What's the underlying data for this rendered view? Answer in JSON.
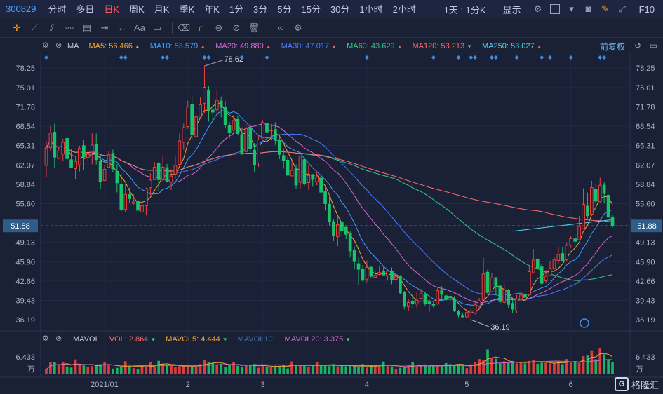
{
  "header": {
    "code": "300829",
    "periods": [
      "分时",
      "多日",
      "日K",
      "周K",
      "月K",
      "季K",
      "年K",
      "1分",
      "3分",
      "5分",
      "15分",
      "30分",
      "1小时",
      "2小时"
    ],
    "active_period": "日K",
    "interval_select": "1天 : 1分K",
    "display_select": "显示",
    "f10": "F10"
  },
  "drawbar": {
    "text_tool": "Aa"
  },
  "ma_legend": {
    "name": "MA",
    "items": [
      {
        "label": "MA5: 56.466",
        "color": "#f0a53a",
        "trend": "up"
      },
      {
        "label": "MA10: 53.579",
        "color": "#3aa0ff",
        "trend": "up"
      },
      {
        "label": "MA20: 49.880",
        "color": "#d86ad0",
        "trend": "up"
      },
      {
        "label": "MA30: 47.017",
        "color": "#4a7cff",
        "trend": "up"
      },
      {
        "label": "MA60: 43.629",
        "color": "#37c88a",
        "trend": "up"
      },
      {
        "label": "MA120: 53.213",
        "color": "#ff6a6a",
        "trend": "down"
      },
      {
        "label": "MA250: 53.027",
        "color": "#4fd6f0",
        "trend": "up"
      }
    ],
    "adjust_label": "前复权"
  },
  "vol_legend": {
    "name": "MAVOL",
    "items": [
      {
        "label": "VOL: 2.864",
        "color": "#ff6a6a",
        "trend": "down"
      },
      {
        "label": "MAVOL5: 4.444",
        "color": "#f0a53a",
        "trend": "down"
      },
      {
        "label": "MAVOL10:",
        "color": "#3c70b0",
        "trend": "none"
      },
      {
        "label": "MAVOL20: 3.375",
        "color": "#d86ad0",
        "trend": "down"
      }
    ]
  },
  "price_axis": {
    "ticks": [
      "78.25",
      "75.01",
      "71.78",
      "68.54",
      "65.31",
      "62.07",
      "58.84",
      "55.60",
      "51.88",
      "49.13",
      "45.90",
      "42.66",
      "39.43",
      "36.19"
    ],
    "current": "51.88",
    "max_label": "78.62",
    "min_label": "36.19"
  },
  "vol_axis": {
    "max": "6.433",
    "unit": "万"
  },
  "date_labels": [
    "2021/01",
    "2",
    "3",
    "4",
    "5",
    "6"
  ],
  "watermark": "格隆汇",
  "chart_data": {
    "type": "candlestick",
    "y_range": [
      34.8,
      80.5
    ],
    "current_price": 51.88,
    "high_marker": 78.62,
    "low_marker": 36.19,
    "candles": [
      [
        62.01,
        64.93,
        60.0,
        66.11,
        1.2
      ],
      [
        64.96,
        67.42,
        64.37,
        68.61,
        2.88
      ],
      [
        67.54,
        63.37,
        61.64,
        68.96,
        2.9
      ],
      [
        63.18,
        64.39,
        63.03,
        65.09,
        2.35
      ],
      [
        63.9,
        65.85,
        62.73,
        66.44,
        2.87
      ],
      [
        66.49,
        63.13,
        62.61,
        66.69,
        1.9
      ],
      [
        62.94,
        61.61,
        61.5,
        64.74,
        1.63
      ],
      [
        61.47,
        62.66,
        59.71,
        63.63,
        3.61
      ],
      [
        62.09,
        64.84,
        60.97,
        65.29,
        2.31
      ],
      [
        65.29,
        63.4,
        61.19,
        66.28,
        2.15
      ],
      [
        63.31,
        63.86,
        62.75,
        64.53,
        1.85
      ],
      [
        64.23,
        65.38,
        62.19,
        67.42,
        1.98
      ],
      [
        65.48,
        62.96,
        62.16,
        67.33,
        2.28
      ],
      [
        62.75,
        59.23,
        58.1,
        63.69,
        2.42
      ],
      [
        59.46,
        61.34,
        59.38,
        62.1,
        3.06
      ],
      [
        61.66,
        63.78,
        61.63,
        64.34,
        2.17
      ],
      [
        63.99,
        61.43,
        60.91,
        64.63,
        1.39
      ],
      [
        61.0,
        59.08,
        57.48,
        62.22,
        1.56
      ],
      [
        58.81,
        54.64,
        54.23,
        60.61,
        1.81
      ],
      [
        54.63,
        57.14,
        54.2,
        58.98,
        3.16
      ],
      [
        57.12,
        56.45,
        55.73,
        58.26,
        2.05
      ],
      [
        55.64,
        55.91,
        55.45,
        57.15,
        1.5
      ],
      [
        56.06,
        54.5,
        54.4,
        57.77,
        1.31
      ],
      [
        54.2,
        55.25,
        54.05,
        56.77,
        1.94
      ],
      [
        55.24,
        58.1,
        53.65,
        58.29,
        2.02
      ],
      [
        58.26,
        59.52,
        57.01,
        60.68,
        2.93
      ],
      [
        59.62,
        61.68,
        59.53,
        62.56,
        1.81
      ],
      [
        62.31,
        59.62,
        57.63,
        62.54,
        3.26
      ],
      [
        59.59,
        61.69,
        59.27,
        63.5,
        2.54
      ],
      [
        61.61,
        59.22,
        59.2,
        62.22,
        2.25
      ],
      [
        59.18,
        60.21,
        57.87,
        61.35,
        2.05
      ],
      [
        60.56,
        62.02,
        59.74,
        63.45,
        1.66
      ],
      [
        62.15,
        66.09,
        61.98,
        67.34,
        1.98
      ],
      [
        65.87,
        68.3,
        64.6,
        68.98,
        2.11
      ],
      [
        68.49,
        71.74,
        68.12,
        72.79,
        2.31
      ],
      [
        72.22,
        67.14,
        66.3,
        73.78,
        1.72
      ],
      [
        66.79,
        70.1,
        66.16,
        70.46,
        1.86
      ],
      [
        70.06,
        72.14,
        69.96,
        73.46,
        2.48
      ],
      [
        72.37,
        75.05,
        70.79,
        78.62,
        3.43
      ],
      [
        74.55,
        71.16,
        69.3,
        75.31,
        3.05
      ],
      [
        71.24,
        70.89,
        69.36,
        72.25,
        2.77
      ],
      [
        71.28,
        72.88,
        70.71,
        74.54,
        2.44
      ],
      [
        72.74,
        71.7,
        70.03,
        73.51,
        2.59
      ],
      [
        71.64,
        68.8,
        68.23,
        72.73,
        1.82
      ],
      [
        68.62,
        67.45,
        66.52,
        69.25,
        2.26
      ],
      [
        67.87,
        69.48,
        67.53,
        70.39,
        2.93
      ],
      [
        69.66,
        67.34,
        67.09,
        70.33,
        2.08
      ],
      [
        67.16,
        63.88,
        63.86,
        68.35,
        1.7
      ],
      [
        64.3,
        68.14,
        64.28,
        68.92,
        2.24
      ],
      [
        68.18,
        64.74,
        63.96,
        68.84,
        2.33
      ],
      [
        64.54,
        62.08,
        60.81,
        65.76,
        2.49
      ],
      [
        62.39,
        66.26,
        61.74,
        66.91,
        1.58
      ],
      [
        66.58,
        69.15,
        66.47,
        69.56,
        2.07
      ],
      [
        68.95,
        67.59,
        66.44,
        69.93,
        1.89
      ],
      [
        67.86,
        67.9,
        66.18,
        68.91,
        1.85
      ],
      [
        67.98,
        66.2,
        65.42,
        69.2,
        2.09
      ],
      [
        66.27,
        63.82,
        63.01,
        67.23,
        2.03
      ],
      [
        63.63,
        62.77,
        61.46,
        64.87,
        2.2
      ],
      [
        62.86,
        60.37,
        60.16,
        63.63,
        1.43
      ],
      [
        60.24,
        61.16,
        60.2,
        62.85,
        3.12
      ],
      [
        61.56,
        58.73,
        58.14,
        62.14,
        2.31
      ],
      [
        59.16,
        63.54,
        58.12,
        63.68,
        2.15
      ],
      [
        62.96,
        58.97,
        58.61,
        63.31,
        2.04
      ],
      [
        59.11,
        60.3,
        57.87,
        61.95,
        1.85
      ],
      [
        60.45,
        59.63,
        58.41,
        60.57,
        2.32
      ],
      [
        59.25,
        60.02,
        58.69,
        60.83,
        2.95
      ],
      [
        59.88,
        57.52,
        57.06,
        60.71,
        2.11
      ],
      [
        57.66,
        55.61,
        54.46,
        58.63,
        2.16
      ],
      [
        55.51,
        52.55,
        51.97,
        57.19,
        1.99
      ],
      [
        52.6,
        50.27,
        49.33,
        53.03,
        2.48
      ],
      [
        50.12,
        52.07,
        48.5,
        53.54,
        1.92
      ],
      [
        52.52,
        51.14,
        50.12,
        52.54,
        2.26
      ],
      [
        51.61,
        50.48,
        49.68,
        51.94,
        1.96
      ],
      [
        50.6,
        47.71,
        46.64,
        50.94,
        2.06
      ],
      [
        47.73,
        45.92,
        44.61,
        48.43,
        1.97
      ],
      [
        45.57,
        44.64,
        42.09,
        46.56,
        1.78
      ],
      [
        44.62,
        42.8,
        42.58,
        45.31,
        2.48
      ],
      [
        42.99,
        44.93,
        42.49,
        46.1,
        1.63
      ],
      [
        44.97,
        43.48,
        43.26,
        45.11,
        2.22
      ],
      [
        43.27,
        43.61,
        43.15,
        44.53,
        1.89
      ],
      [
        43.77,
        44.09,
        43.54,
        45.27,
        1.85
      ],
      [
        44.32,
        43.68,
        43.66,
        45.23,
        3.11
      ],
      [
        43.57,
        44.33,
        42.75,
        44.76,
        2.08
      ],
      [
        44.23,
        42.87,
        42.13,
        44.93,
        1.92
      ],
      [
        42.94,
        43.39,
        41.3,
        44.36,
        1.25
      ],
      [
        43.48,
        40.69,
        40.46,
        43.66,
        1.58
      ],
      [
        40.79,
        38.43,
        37.93,
        41.02,
        1.63
      ],
      [
        38.39,
        39.09,
        37.66,
        39.66,
        2.23
      ],
      [
        39.31,
        38.87,
        38.1,
        40.32,
        3.03
      ],
      [
        38.81,
        39.47,
        38.17,
        40.78,
        1.89
      ],
      [
        39.77,
        40.51,
        39.59,
        41.34,
        2.11
      ],
      [
        40.36,
        38.95,
        38.44,
        40.84,
        2.24
      ],
      [
        39.17,
        38.84,
        37.52,
        39.63,
        2.1
      ],
      [
        38.78,
        38.64,
        38.24,
        39.37,
        1.98
      ],
      [
        38.82,
        41.06,
        38.71,
        41.56,
        2.02
      ],
      [
        41.04,
        40.45,
        39.61,
        41.82,
        2.01
      ],
      [
        40.19,
        39.71,
        39.1,
        40.55,
        2.72
      ],
      [
        40.12,
        39.87,
        38.89,
        40.24,
        2.49
      ],
      [
        39.55,
        37.78,
        37.51,
        40.15,
        2.26
      ],
      [
        37.6,
        36.95,
        36.58,
        37.87,
        2.5
      ],
      [
        36.81,
        36.71,
        36.46,
        37.4,
        2.13
      ],
      [
        36.68,
        37.41,
        36.37,
        38.08,
        1.5
      ],
      [
        37.37,
        37.69,
        36.19,
        38.03,
        2.41
      ],
      [
        37.33,
        38.67,
        37.07,
        39.35,
        2.9
      ],
      [
        38.51,
        39.35,
        37.93,
        39.85,
        3.7
      ],
      [
        39.52,
        43.86,
        39.51,
        46.57,
        3.44
      ],
      [
        44.14,
        40.77,
        40.39,
        44.58,
        6.02
      ],
      [
        40.89,
        43.19,
        40.87,
        44.05,
        4.03
      ],
      [
        43.2,
        41.68,
        40.31,
        43.36,
        3.76
      ],
      [
        41.83,
        39.23,
        38.82,
        42.11,
        2.64
      ],
      [
        39.11,
        41.21,
        38.9,
        42.25,
        3.14
      ],
      [
        41.15,
        38.76,
        38.16,
        41.33,
        2.74
      ],
      [
        38.93,
        37.97,
        37.34,
        39.57,
        3.15
      ],
      [
        37.68,
        39.7,
        37.33,
        40.33,
        2.61
      ],
      [
        39.51,
        40.33,
        39.2,
        40.91,
        2.96
      ],
      [
        40.42,
        39.94,
        39.86,
        41.08,
        2.63
      ],
      [
        40.34,
        44.23,
        40.32,
        45.26,
        3.24
      ],
      [
        44.03,
        46.17,
        43.9,
        48.02,
        3.42
      ],
      [
        46.25,
        44.72,
        44.61,
        46.43,
        2.56
      ],
      [
        45.03,
        42.28,
        41.97,
        45.53,
        2.76
      ],
      [
        42.73,
        43.47,
        42.41,
        44.53,
        2.8
      ],
      [
        43.59,
        44.78,
        43.48,
        45.98,
        2.61
      ],
      [
        44.76,
        46.19,
        44.27,
        46.67,
        2.76
      ],
      [
        46.11,
        47.12,
        45.49,
        48.29,
        3.1
      ],
      [
        47.27,
        46.03,
        45.98,
        48.39,
        2.46
      ],
      [
        46.24,
        48.64,
        45.95,
        49.14,
        3.7
      ],
      [
        48.67,
        49.74,
        48.2,
        50.26,
        2.85
      ],
      [
        49.71,
        49.31,
        48.42,
        50.46,
        3.17
      ],
      [
        49.56,
        51.79,
        49.55,
        53.56,
        2.73
      ],
      [
        51.44,
        55.49,
        51.39,
        58.17,
        4.38
      ],
      [
        55.19,
        53.6,
        53.12,
        57.45,
        4.55
      ],
      [
        53.83,
        58.29,
        53.75,
        59.43,
        5.81
      ],
      [
        57.97,
        56.02,
        55.77,
        58.79,
        3.64
      ],
      [
        55.99,
        58.67,
        55.79,
        59.96,
        6.43
      ],
      [
        58.69,
        57.31,
        55.7,
        59.21,
        4.86
      ],
      [
        57.0,
        53.35,
        53.33,
        57.13,
        3.47
      ],
      [
        53.25,
        51.88,
        51.6,
        53.7,
        2.86
      ]
    ]
  }
}
